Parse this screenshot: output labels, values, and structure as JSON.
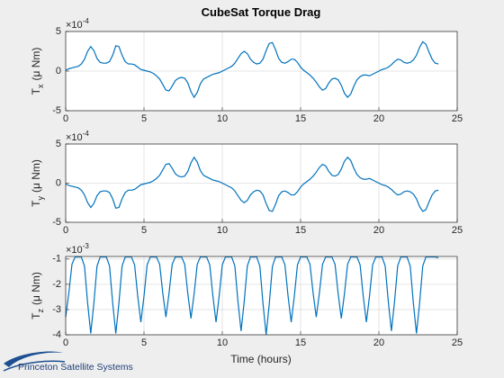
{
  "chart_data": {
    "type": "line",
    "title": "CubeSat Torque Drag",
    "xlabel": "Time (hours)",
    "xlim": [
      0,
      25
    ],
    "xticks": [
      0,
      5,
      10,
      15,
      20,
      25
    ],
    "grid": true,
    "x": [
      0,
      0.2,
      0.4,
      0.6,
      0.8,
      1,
      1.2,
      1.4,
      1.6,
      1.8,
      2,
      2.2,
      2.4,
      2.6,
      2.8,
      3,
      3.2,
      3.4,
      3.6,
      3.8,
      4,
      4.2,
      4.4,
      4.6,
      4.8,
      5,
      5.2,
      5.4,
      5.6,
      5.8,
      6,
      6.2,
      6.4,
      6.6,
      6.8,
      7,
      7.2,
      7.4,
      7.6,
      7.8,
      8,
      8.2,
      8.4,
      8.6,
      8.8,
      9,
      9.2,
      9.4,
      9.6,
      9.8,
      10,
      10.2,
      10.4,
      10.6,
      10.8,
      11,
      11.2,
      11.4,
      11.6,
      11.8,
      12,
      12.2,
      12.4,
      12.6,
      12.8,
      13,
      13.2,
      13.4,
      13.6,
      13.8,
      14,
      14.2,
      14.4,
      14.6,
      14.8,
      15,
      15.2,
      15.4,
      15.6,
      15.8,
      16,
      16.2,
      16.4,
      16.6,
      16.8,
      17,
      17.2,
      17.4,
      17.6,
      17.8,
      18,
      18.2,
      18.4,
      18.6,
      18.8,
      19,
      19.2,
      19.4,
      19.6,
      19.8,
      20,
      20.2,
      20.4,
      20.6,
      20.8,
      21,
      21.2,
      21.4,
      21.6,
      21.8,
      22,
      22.2,
      22.4,
      22.6,
      22.8,
      23,
      23.2,
      23.4,
      23.6,
      23.8
    ],
    "subplots": [
      {
        "ylabel": "T",
        "ylabel_sub": "x",
        "ylabel_unit": "(μ Nm)",
        "exponent_base": "×10",
        "exponent": "-4",
        "ylim": [
          -5,
          5
        ],
        "yticks": [
          -5,
          0,
          5
        ],
        "series": [
          {
            "color": "#0072bd",
            "values": [
              0.1,
              0.3,
              0.4,
              0.5,
              0.6,
              0.9,
              1.5,
              2.5,
              3.1,
              2.6,
              1.6,
              1.1,
              1.0,
              1.0,
              1.2,
              2.0,
              3.2,
              3.1,
              2.0,
              1.2,
              0.9,
              0.9,
              0.8,
              0.5,
              0.2,
              0.1,
              0.0,
              -0.1,
              -0.3,
              -0.6,
              -1.0,
              -1.7,
              -2.4,
              -2.5,
              -1.9,
              -1.2,
              -0.9,
              -0.8,
              -0.9,
              -1.5,
              -2.6,
              -3.3,
              -2.7,
              -1.6,
              -1.0,
              -0.8,
              -0.6,
              -0.4,
              -0.3,
              -0.2,
              0.0,
              0.2,
              0.4,
              0.6,
              1.0,
              1.6,
              2.2,
              2.5,
              2.2,
              1.5,
              1.1,
              0.9,
              1.0,
              1.5,
              2.6,
              3.5,
              3.6,
              2.7,
              1.6,
              1.1,
              1.0,
              1.2,
              1.5,
              1.5,
              1.1,
              0.5,
              0.1,
              -0.2,
              -0.5,
              -0.9,
              -1.4,
              -2.0,
              -2.4,
              -2.2,
              -1.5,
              -1.0,
              -0.9,
              -1.1,
              -1.8,
              -2.8,
              -3.3,
              -2.9,
              -1.9,
              -1.1,
              -0.7,
              -0.5,
              -0.5,
              -0.6,
              -0.4,
              -0.2,
              0.0,
              0.2,
              0.3,
              0.5,
              0.8,
              1.2,
              1.5,
              1.4,
              1.1,
              1.0,
              1.1,
              1.4,
              2.0,
              3.0,
              3.7,
              3.4,
              2.4,
              1.5,
              1.0,
              0.9
            ]
          }
        ]
      },
      {
        "ylabel": "T",
        "ylabel_sub": "y",
        "ylabel_unit": "(μ Nm)",
        "exponent_base": "×10",
        "exponent": "-4",
        "ylim": [
          -5,
          5
        ],
        "yticks": [
          -5,
          0,
          5
        ],
        "series": [
          {
            "color": "#0072bd",
            "values": [
              -0.1,
              -0.3,
              -0.4,
              -0.5,
              -0.6,
              -0.9,
              -1.5,
              -2.5,
              -3.1,
              -2.6,
              -1.6,
              -1.1,
              -1.0,
              -1.0,
              -1.2,
              -2.0,
              -3.2,
              -3.1,
              -2.0,
              -1.2,
              -0.9,
              -0.9,
              -0.8,
              -0.5,
              -0.2,
              -0.1,
              0.0,
              0.1,
              0.3,
              0.6,
              1.0,
              1.7,
              2.4,
              2.5,
              1.9,
              1.2,
              0.9,
              0.8,
              0.9,
              1.5,
              2.6,
              3.3,
              2.7,
              1.6,
              1.0,
              0.8,
              0.6,
              0.4,
              0.3,
              0.2,
              0.0,
              -0.2,
              -0.4,
              -0.6,
              -1.0,
              -1.6,
              -2.2,
              -2.5,
              -2.2,
              -1.5,
              -1.1,
              -0.9,
              -1.0,
              -1.5,
              -2.6,
              -3.5,
              -3.6,
              -2.7,
              -1.6,
              -1.1,
              -1.0,
              -1.2,
              -1.5,
              -1.5,
              -1.1,
              -0.5,
              -0.1,
              0.2,
              0.5,
              0.9,
              1.4,
              2.0,
              2.4,
              2.2,
              1.5,
              1.0,
              0.9,
              1.1,
              1.8,
              2.8,
              3.3,
              2.9,
              1.9,
              1.1,
              0.7,
              0.5,
              0.5,
              0.6,
              0.4,
              0.2,
              0.0,
              -0.2,
              -0.3,
              -0.5,
              -0.8,
              -1.2,
              -1.5,
              -1.4,
              -1.1,
              -1.0,
              -1.1,
              -1.4,
              -2.0,
              -3.0,
              -3.6,
              -3.4,
              -2.4,
              -1.5,
              -1.0,
              -0.9
            ]
          }
        ]
      },
      {
        "ylabel": "T",
        "ylabel_sub": "z",
        "ylabel_unit": "(μ Nm)",
        "exponent_base": "×10",
        "exponent": "-3",
        "ylim": [
          -4,
          -0.9
        ],
        "yticks": [
          -4,
          -3,
          -2,
          -1
        ],
        "series": [
          {
            "color": "#0072bd",
            "values": [
              -3.3,
              -2.35,
              -1.21,
              -0.92,
              -0.92,
              -0.92,
              -1.28,
              -2.74,
              -3.95,
              -2.74,
              -1.28,
              -0.92,
              -0.92,
              -0.92,
              -1.28,
              -2.74,
              -3.95,
              -2.74,
              -1.28,
              -0.92,
              -0.92,
              -0.92,
              -1.23,
              -2.47,
              -3.5,
              -2.47,
              -1.23,
              -0.92,
              -0.92,
              -0.92,
              -1.21,
              -2.35,
              -3.3,
              -2.35,
              -1.21,
              -0.92,
              -0.92,
              -0.92,
              -1.21,
              -2.38,
              -3.35,
              -2.38,
              -1.21,
              -0.92,
              -0.92,
              -0.92,
              -1.23,
              -2.47,
              -3.5,
              -2.47,
              -1.23,
              -0.92,
              -0.92,
              -0.92,
              -1.27,
              -2.68,
              -3.85,
              -2.68,
              -1.27,
              -0.92,
              -0.92,
              -0.92,
              -1.29,
              -2.77,
              -4.0,
              -2.77,
              -1.29,
              -0.92,
              -0.92,
              -0.92,
              -1.23,
              -2.47,
              -3.5,
              -2.47,
              -1.23,
              -0.92,
              -0.92,
              -0.92,
              -1.21,
              -2.35,
              -3.3,
              -2.35,
              -1.21,
              -0.92,
              -0.92,
              -0.92,
              -1.21,
              -2.38,
              -3.35,
              -2.38,
              -1.21,
              -0.92,
              -0.92,
              -0.92,
              -1.23,
              -2.47,
              -3.5,
              -2.47,
              -1.23,
              -0.92,
              -0.92,
              -0.92,
              -1.27,
              -2.68,
              -3.85,
              -2.68,
              -1.27,
              -0.92,
              -0.92,
              -0.92,
              -1.28,
              -2.74,
              -3.95,
              -2.74,
              -1.28,
              -0.92,
              -0.92,
              -0.92,
              -0.92,
              -0.95
            ]
          }
        ]
      }
    ]
  },
  "logo": {
    "text": "Princeton Satellite Systems"
  }
}
